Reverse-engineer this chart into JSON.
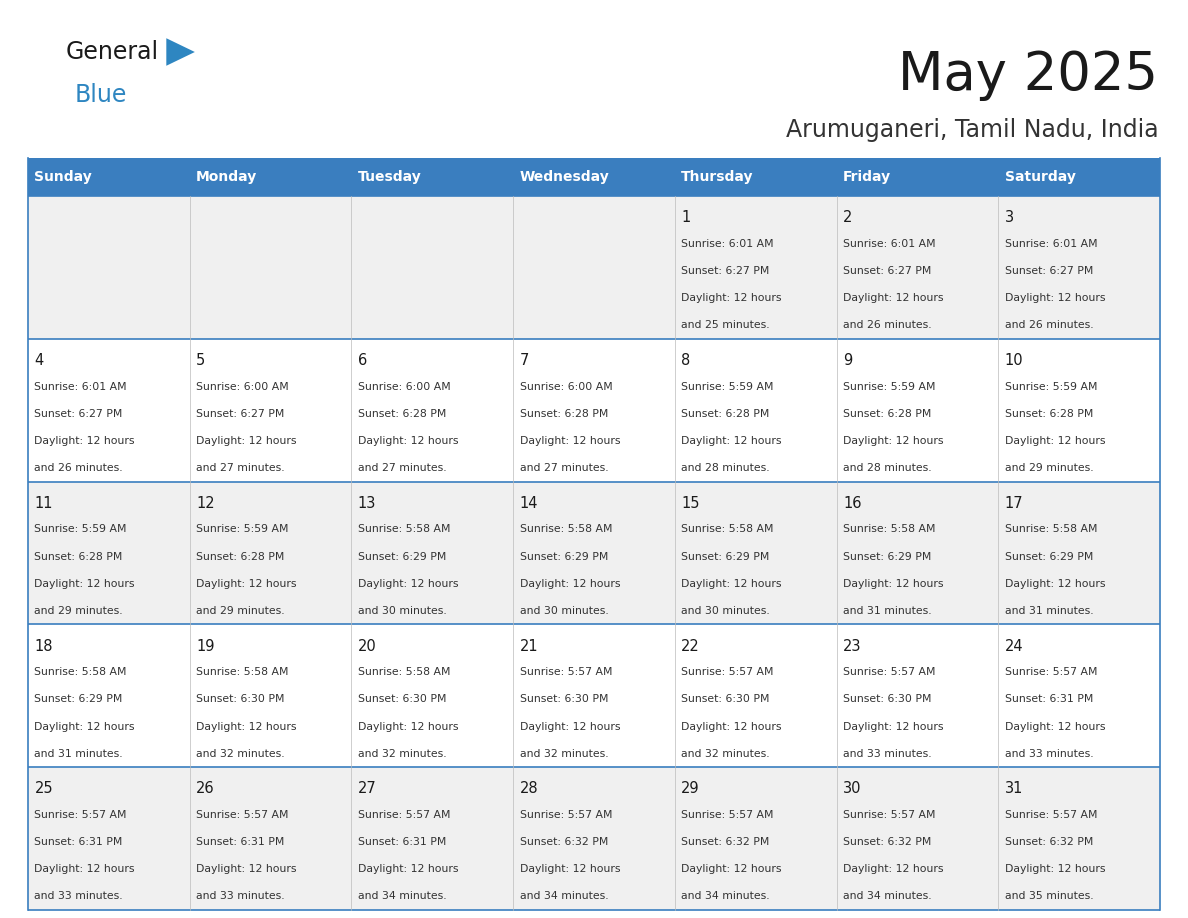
{
  "title": "May 2025",
  "subtitle": "Arumuganeri, Tamil Nadu, India",
  "days_of_week": [
    "Sunday",
    "Monday",
    "Tuesday",
    "Wednesday",
    "Thursday",
    "Friday",
    "Saturday"
  ],
  "header_bg": "#3a7ebf",
  "header_text_color": "#ffffff",
  "row_bg_even": "#f0f0f0",
  "row_bg_odd": "#ffffff",
  "border_color": "#3a7ebf",
  "title_color": "#1a1a1a",
  "subtitle_color": "#333333",
  "cell_text_color": "#333333",
  "day_number_color": "#1a1a1a",
  "logo_triangle_color": "#2e86c1",
  "calendar_data": [
    [
      {
        "day": null,
        "sunrise": null,
        "sunset": null,
        "daylight_mins": null
      },
      {
        "day": null,
        "sunrise": null,
        "sunset": null,
        "daylight_mins": null
      },
      {
        "day": null,
        "sunrise": null,
        "sunset": null,
        "daylight_mins": null
      },
      {
        "day": null,
        "sunrise": null,
        "sunset": null,
        "daylight_mins": null
      },
      {
        "day": 1,
        "sunrise": "6:01 AM",
        "sunset": "6:27 PM",
        "daylight": "25 minutes."
      },
      {
        "day": 2,
        "sunrise": "6:01 AM",
        "sunset": "6:27 PM",
        "daylight": "26 minutes."
      },
      {
        "day": 3,
        "sunrise": "6:01 AM",
        "sunset": "6:27 PM",
        "daylight": "26 minutes."
      }
    ],
    [
      {
        "day": 4,
        "sunrise": "6:01 AM",
        "sunset": "6:27 PM",
        "daylight": "26 minutes."
      },
      {
        "day": 5,
        "sunrise": "6:00 AM",
        "sunset": "6:27 PM",
        "daylight": "27 minutes."
      },
      {
        "day": 6,
        "sunrise": "6:00 AM",
        "sunset": "6:28 PM",
        "daylight": "27 minutes."
      },
      {
        "day": 7,
        "sunrise": "6:00 AM",
        "sunset": "6:28 PM",
        "daylight": "27 minutes."
      },
      {
        "day": 8,
        "sunrise": "5:59 AM",
        "sunset": "6:28 PM",
        "daylight": "28 minutes."
      },
      {
        "day": 9,
        "sunrise": "5:59 AM",
        "sunset": "6:28 PM",
        "daylight": "28 minutes."
      },
      {
        "day": 10,
        "sunrise": "5:59 AM",
        "sunset": "6:28 PM",
        "daylight": "29 minutes."
      }
    ],
    [
      {
        "day": 11,
        "sunrise": "5:59 AM",
        "sunset": "6:28 PM",
        "daylight": "29 minutes."
      },
      {
        "day": 12,
        "sunrise": "5:59 AM",
        "sunset": "6:28 PM",
        "daylight": "29 minutes."
      },
      {
        "day": 13,
        "sunrise": "5:58 AM",
        "sunset": "6:29 PM",
        "daylight": "30 minutes."
      },
      {
        "day": 14,
        "sunrise": "5:58 AM",
        "sunset": "6:29 PM",
        "daylight": "30 minutes."
      },
      {
        "day": 15,
        "sunrise": "5:58 AM",
        "sunset": "6:29 PM",
        "daylight": "30 minutes."
      },
      {
        "day": 16,
        "sunrise": "5:58 AM",
        "sunset": "6:29 PM",
        "daylight": "31 minutes."
      },
      {
        "day": 17,
        "sunrise": "5:58 AM",
        "sunset": "6:29 PM",
        "daylight": "31 minutes."
      }
    ],
    [
      {
        "day": 18,
        "sunrise": "5:58 AM",
        "sunset": "6:29 PM",
        "daylight": "31 minutes."
      },
      {
        "day": 19,
        "sunrise": "5:58 AM",
        "sunset": "6:30 PM",
        "daylight": "32 minutes."
      },
      {
        "day": 20,
        "sunrise": "5:58 AM",
        "sunset": "6:30 PM",
        "daylight": "32 minutes."
      },
      {
        "day": 21,
        "sunrise": "5:57 AM",
        "sunset": "6:30 PM",
        "daylight": "32 minutes."
      },
      {
        "day": 22,
        "sunrise": "5:57 AM",
        "sunset": "6:30 PM",
        "daylight": "32 minutes."
      },
      {
        "day": 23,
        "sunrise": "5:57 AM",
        "sunset": "6:30 PM",
        "daylight": "33 minutes."
      },
      {
        "day": 24,
        "sunrise": "5:57 AM",
        "sunset": "6:31 PM",
        "daylight": "33 minutes."
      }
    ],
    [
      {
        "day": 25,
        "sunrise": "5:57 AM",
        "sunset": "6:31 PM",
        "daylight": "33 minutes."
      },
      {
        "day": 26,
        "sunrise": "5:57 AM",
        "sunset": "6:31 PM",
        "daylight": "33 minutes."
      },
      {
        "day": 27,
        "sunrise": "5:57 AM",
        "sunset": "6:31 PM",
        "daylight": "34 minutes."
      },
      {
        "day": 28,
        "sunrise": "5:57 AM",
        "sunset": "6:32 PM",
        "daylight": "34 minutes."
      },
      {
        "day": 29,
        "sunrise": "5:57 AM",
        "sunset": "6:32 PM",
        "daylight": "34 minutes."
      },
      {
        "day": 30,
        "sunrise": "5:57 AM",
        "sunset": "6:32 PM",
        "daylight": "34 minutes."
      },
      {
        "day": 31,
        "sunrise": "5:57 AM",
        "sunset": "6:32 PM",
        "daylight": "35 minutes."
      }
    ]
  ]
}
